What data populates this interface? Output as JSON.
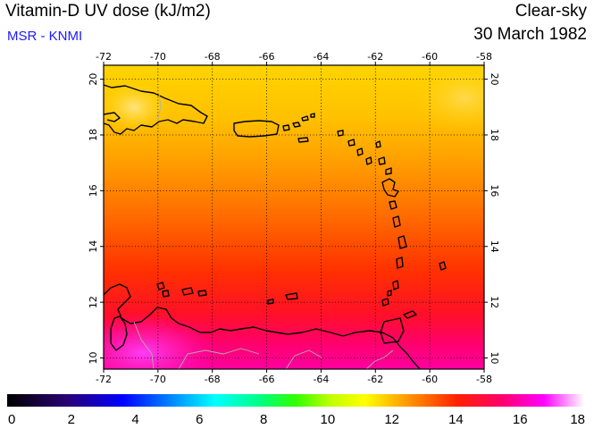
{
  "header": {
    "title": "Vitamin-D UV dose (kJ/m2)",
    "subtitle": "MSR - KNMI",
    "condition": "Clear-sky",
    "date": "30 March 1982"
  },
  "map": {
    "lon_range": [
      -72,
      -58
    ],
    "lat_range": [
      9.6,
      20.5
    ],
    "lon_ticks": [
      "-72",
      "-70",
      "-68",
      "-66",
      "-64",
      "-62",
      "-60",
      "-58"
    ],
    "lat_ticks": [
      "10",
      "12",
      "14",
      "16",
      "18",
      "20"
    ],
    "grid": "dotted"
  },
  "colorbar": {
    "ticks": [
      "0",
      "2",
      "4",
      "6",
      "8",
      "10",
      "12",
      "14",
      "16",
      "18"
    ],
    "min": 0,
    "max": 18
  },
  "colors": {
    "high_dose": "#ff00a0",
    "mid_dose": "#ff2000",
    "low_dose": "#ffd000",
    "coast": "#000000",
    "border": "#b0b0b0",
    "subtitle": "#1a1aff"
  }
}
